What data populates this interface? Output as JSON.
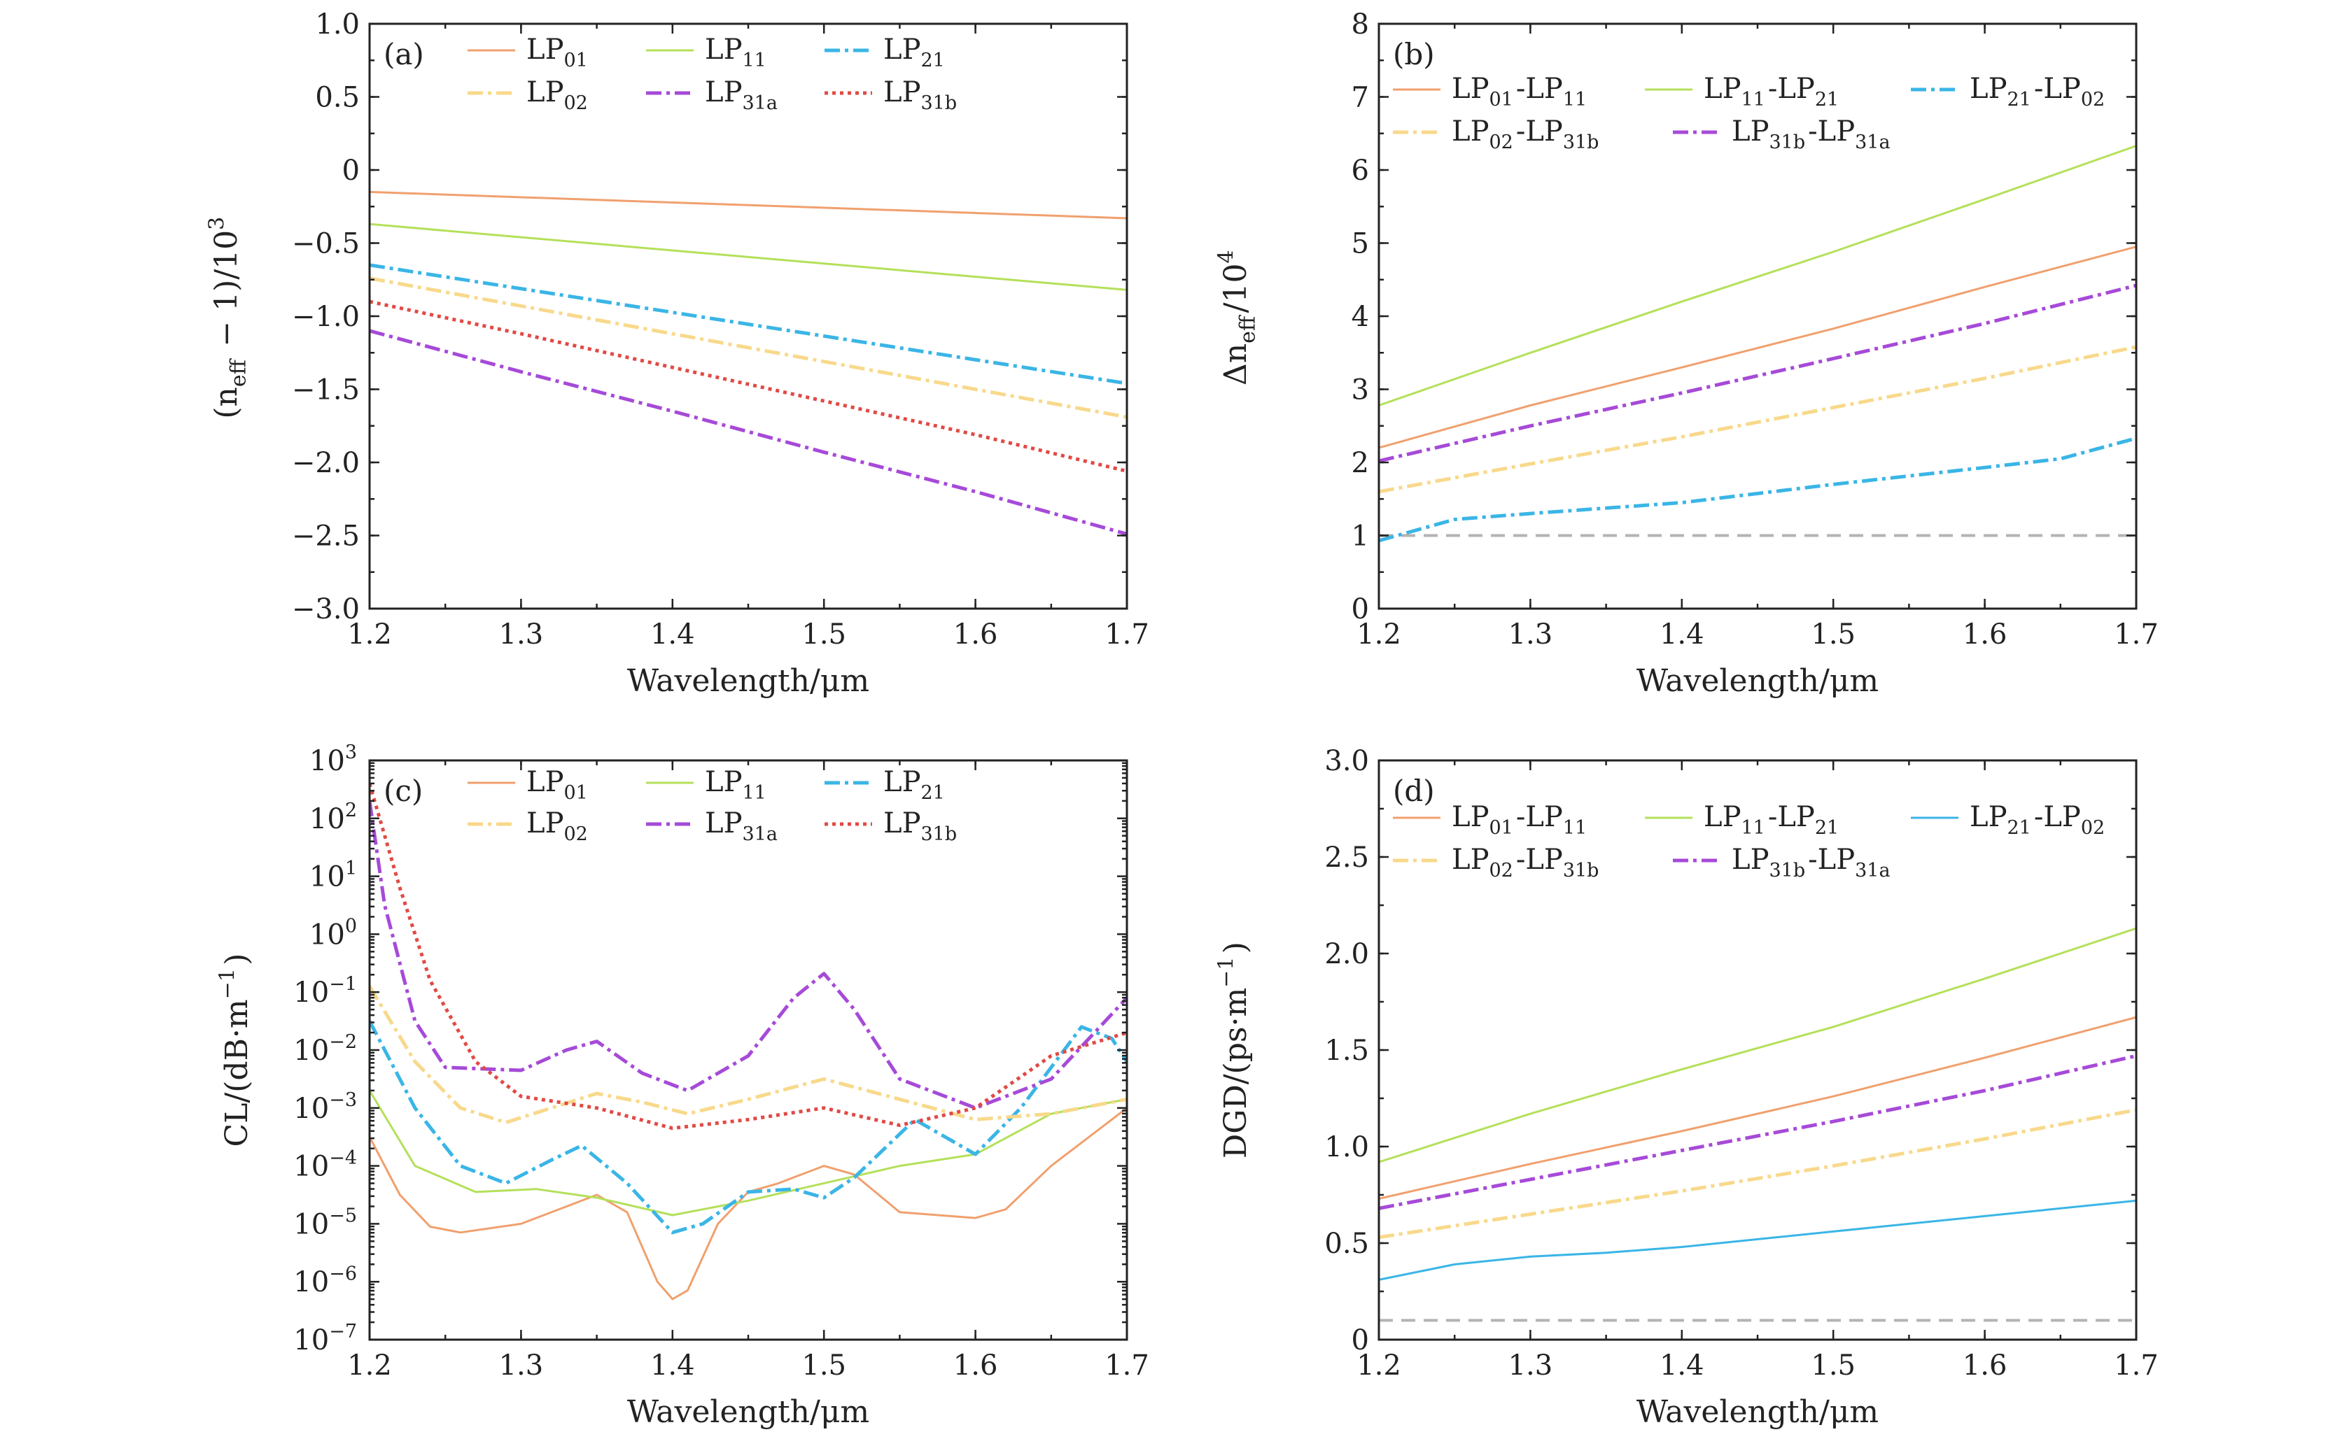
{
  "chart_data": [
    {
      "panel": "(a)",
      "type": "line",
      "scale": "linear",
      "xlabel": "Wavelength/μm",
      "ylabel": "(n_eff − 1)/10^3",
      "xlim": [
        1.2,
        1.7
      ],
      "ylim": [
        -3.0,
        1.0
      ],
      "xticks": [
        1.2,
        1.3,
        1.4,
        1.5,
        1.6,
        1.7
      ],
      "xtick_labels": [
        "1.2",
        "1.3",
        "1.4",
        "1.5",
        "1.6",
        "1.7"
      ],
      "yticks": [
        -3.0,
        -2.5,
        -2.0,
        -1.5,
        -1.0,
        -0.5,
        0,
        0.5,
        1.0
      ],
      "ytick_labels": [
        "−3.0",
        "−2.5",
        "−2.0",
        "−1.5",
        "−1.0",
        "−0.5",
        "0",
        "0.5",
        "1.0"
      ],
      "legend_cols": 3,
      "legend_placement": "top",
      "series": [
        {
          "name": "LP01",
          "color": "#f0a06e",
          "dash": "solid",
          "width": 3,
          "x": [
            1.2,
            1.7
          ],
          "values": [
            -0.15,
            -0.33
          ]
        },
        {
          "name": "LP11",
          "color": "#b4e05a",
          "dash": "solid",
          "width": 3,
          "x": [
            1.2,
            1.7
          ],
          "values": [
            -0.37,
            -0.82
          ]
        },
        {
          "name": "LP21",
          "color": "#3ab5e6",
          "dash": "dashdot",
          "width": 5,
          "x": [
            1.2,
            1.7
          ],
          "values": [
            -0.65,
            -1.46
          ]
        },
        {
          "name": "LP02",
          "color": "#f8d98b",
          "dash": "dashdot",
          "width": 5,
          "x": [
            1.2,
            1.7
          ],
          "values": [
            -0.74,
            -1.69
          ]
        },
        {
          "name": "LP31a",
          "color": "#a64ad8",
          "dash": "dashdot",
          "width": 5,
          "x": [
            1.2,
            1.3,
            1.4,
            1.5,
            1.6,
            1.7
          ],
          "values": [
            -1.1,
            -1.38,
            -1.65,
            -1.93,
            -2.2,
            -2.49
          ]
        },
        {
          "name": "LP31b",
          "color": "#e04a45",
          "dash": "dotted",
          "width": 5,
          "x": [
            1.2,
            1.3,
            1.4,
            1.5,
            1.6,
            1.7
          ],
          "values": [
            -0.9,
            -1.12,
            -1.35,
            -1.58,
            -1.81,
            -2.06
          ]
        }
      ]
    },
    {
      "panel": "(b)",
      "type": "line",
      "scale": "linear",
      "xlabel": "Wavelength/μm",
      "ylabel": "Δn_eff/10^4",
      "xlim": [
        1.2,
        1.7
      ],
      "ylim": [
        0,
        8
      ],
      "xticks": [
        1.2,
        1.3,
        1.4,
        1.5,
        1.6,
        1.7
      ],
      "xtick_labels": [
        "1.2",
        "1.3",
        "1.4",
        "1.5",
        "1.6",
        "1.7"
      ],
      "yticks": [
        0,
        1,
        2,
        3,
        4,
        5,
        6,
        7,
        8
      ],
      "ytick_labels": [
        "0",
        "1",
        "2",
        "3",
        "4",
        "5",
        "6",
        "7",
        "8"
      ],
      "legend_cols": 3,
      "legend_placement": "top",
      "reference_line": {
        "y": 1.0,
        "color": "#b4b4b4"
      },
      "series": [
        {
          "name": "LP01-LP11",
          "color": "#f0a06e",
          "dash": "solid",
          "width": 3,
          "x": [
            1.2,
            1.3,
            1.4,
            1.5,
            1.6,
            1.7
          ],
          "values": [
            2.2,
            2.78,
            3.3,
            3.83,
            4.4,
            4.95
          ]
        },
        {
          "name": "LP11-LP21",
          "color": "#b4e05a",
          "dash": "solid",
          "width": 3,
          "x": [
            1.2,
            1.3,
            1.4,
            1.5,
            1.6,
            1.7
          ],
          "values": [
            2.78,
            3.5,
            4.2,
            4.88,
            5.6,
            6.33
          ]
        },
        {
          "name": "LP21-LP02",
          "color": "#3ab5e6",
          "dash": "dashdot",
          "width": 5,
          "x": [
            1.2,
            1.25,
            1.3,
            1.4,
            1.5,
            1.6,
            1.65,
            1.7
          ],
          "values": [
            0.93,
            1.22,
            1.3,
            1.45,
            1.7,
            1.93,
            2.05,
            2.33
          ]
        },
        {
          "name": "LP02-LP31b",
          "color": "#f8d98b",
          "dash": "dashdot",
          "width": 5,
          "x": [
            1.2,
            1.3,
            1.4,
            1.5,
            1.6,
            1.7
          ],
          "values": [
            1.6,
            1.98,
            2.35,
            2.75,
            3.15,
            3.58
          ]
        },
        {
          "name": "LP31b-LP31a",
          "color": "#a64ad8",
          "dash": "dashdot",
          "width": 5,
          "x": [
            1.2,
            1.3,
            1.4,
            1.5,
            1.6,
            1.7
          ],
          "values": [
            2.02,
            2.5,
            2.95,
            3.42,
            3.9,
            4.42
          ]
        }
      ]
    },
    {
      "panel": "(c)",
      "type": "line",
      "scale": "log",
      "xlabel": "Wavelength/μm",
      "ylabel": "CL/(dB·m^−1)",
      "xlim": [
        1.2,
        1.7
      ],
      "ylim_log10": [
        -7,
        3
      ],
      "xticks": [
        1.2,
        1.3,
        1.4,
        1.5,
        1.6,
        1.7
      ],
      "xtick_labels": [
        "1.2",
        "1.3",
        "1.4",
        "1.5",
        "1.6",
        "1.7"
      ],
      "yticks_log10": [
        -7,
        -6,
        -5,
        -4,
        -3,
        -2,
        -1,
        0,
        1,
        2,
        3
      ],
      "ytick_labels": [
        "10^-7",
        "10^-6",
        "10^-5",
        "10^-4",
        "10^-3",
        "10^-2",
        "10^-1",
        "10^0",
        "10^1",
        "10^2",
        "10^3"
      ],
      "legend_cols": 3,
      "legend_placement": "top",
      "series": [
        {
          "name": "LP01",
          "color": "#f0a06e",
          "dash": "solid",
          "width": 3,
          "x": [
            1.2,
            1.22,
            1.24,
            1.26,
            1.3,
            1.33,
            1.35,
            1.37,
            1.39,
            1.4,
            1.41,
            1.43,
            1.45,
            1.47,
            1.5,
            1.52,
            1.55,
            1.6,
            1.62,
            1.65,
            1.7
          ],
          "log10": [
            -3.5,
            -4.5,
            -5.05,
            -5.15,
            -5.0,
            -4.7,
            -4.5,
            -4.8,
            -6.0,
            -6.3,
            -6.15,
            -5.0,
            -4.45,
            -4.3,
            -4.0,
            -4.15,
            -4.8,
            -4.9,
            -4.75,
            -4.0,
            -3.0
          ]
        },
        {
          "name": "LP11",
          "color": "#b4e05a",
          "dash": "solid",
          "width": 3,
          "x": [
            1.2,
            1.23,
            1.27,
            1.31,
            1.35,
            1.4,
            1.45,
            1.5,
            1.55,
            1.6,
            1.65,
            1.7
          ],
          "log10": [
            -2.7,
            -4.0,
            -4.45,
            -4.4,
            -4.55,
            -4.85,
            -4.6,
            -4.3,
            -4.0,
            -3.8,
            -3.1,
            -2.85
          ]
        },
        {
          "name": "LP21",
          "color": "#3ab5e6",
          "dash": "dashdot",
          "width": 5,
          "x": [
            1.2,
            1.23,
            1.26,
            1.29,
            1.32,
            1.34,
            1.37,
            1.4,
            1.42,
            1.45,
            1.48,
            1.5,
            1.52,
            1.56,
            1.6,
            1.63,
            1.67,
            1.69,
            1.7
          ],
          "log10": [
            -1.5,
            -3.0,
            -4.0,
            -4.3,
            -3.9,
            -3.65,
            -4.3,
            -5.15,
            -5.0,
            -4.45,
            -4.4,
            -4.55,
            -4.2,
            -3.2,
            -3.8,
            -3.0,
            -1.6,
            -1.8,
            -2.2
          ]
        },
        {
          "name": "LP02",
          "color": "#f8d98b",
          "dash": "dashdot",
          "width": 5,
          "x": [
            1.2,
            1.23,
            1.26,
            1.29,
            1.32,
            1.35,
            1.38,
            1.41,
            1.45,
            1.5,
            1.55,
            1.6,
            1.65,
            1.7
          ],
          "log10": [
            -0.9,
            -2.2,
            -3.0,
            -3.25,
            -3.0,
            -2.75,
            -2.9,
            -3.1,
            -2.85,
            -2.5,
            -2.85,
            -3.2,
            -3.1,
            -2.85
          ]
        },
        {
          "name": "LP31a",
          "color": "#a64ad8",
          "dash": "dashdot",
          "width": 5,
          "x": [
            1.2,
            1.21,
            1.23,
            1.25,
            1.3,
            1.33,
            1.35,
            1.38,
            1.41,
            1.45,
            1.48,
            1.5,
            1.52,
            1.55,
            1.6,
            1.65,
            1.7
          ],
          "log10": [
            2.3,
            0.5,
            -1.5,
            -2.3,
            -2.35,
            -2.0,
            -1.85,
            -2.4,
            -2.7,
            -2.1,
            -1.1,
            -0.68,
            -1.3,
            -2.5,
            -3.0,
            -2.5,
            -1.1
          ]
        },
        {
          "name": "LP31b",
          "color": "#e04a45",
          "dash": "dotted",
          "width": 5,
          "x": [
            1.2,
            1.22,
            1.24,
            1.27,
            1.3,
            1.35,
            1.4,
            1.45,
            1.5,
            1.55,
            1.6,
            1.65,
            1.7
          ],
          "log10": [
            2.6,
            0.8,
            -0.8,
            -2.2,
            -2.8,
            -3.0,
            -3.35,
            -3.2,
            -3.0,
            -3.3,
            -3.0,
            -2.1,
            -1.7
          ]
        }
      ]
    },
    {
      "panel": "(d)",
      "type": "line",
      "scale": "linear",
      "xlabel": "Wavelength/μm",
      "ylabel": "DGD/(ps·m^−1)",
      "xlim": [
        1.2,
        1.7
      ],
      "ylim": [
        0,
        3.0
      ],
      "xticks": [
        1.2,
        1.3,
        1.4,
        1.5,
        1.6,
        1.7
      ],
      "xtick_labels": [
        "1.2",
        "1.3",
        "1.4",
        "1.5",
        "1.6",
        "1.7"
      ],
      "yticks": [
        0,
        0.5,
        1.0,
        1.5,
        2.0,
        2.5,
        3.0
      ],
      "ytick_labels": [
        "0",
        "0.5",
        "1.0",
        "1.5",
        "2.0",
        "2.5",
        "3.0"
      ],
      "legend_cols": 3,
      "legend_placement": "top",
      "reference_line": {
        "y": 0.1,
        "color": "#b4b4b4"
      },
      "series": [
        {
          "name": "LP01-LP11",
          "color": "#f0a06e",
          "dash": "solid",
          "width": 3,
          "x": [
            1.2,
            1.3,
            1.4,
            1.5,
            1.6,
            1.7
          ],
          "values": [
            0.73,
            0.91,
            1.08,
            1.26,
            1.46,
            1.67
          ]
        },
        {
          "name": "LP11-LP21",
          "color": "#b4e05a",
          "dash": "solid",
          "width": 3,
          "x": [
            1.2,
            1.3,
            1.4,
            1.5,
            1.6,
            1.7
          ],
          "values": [
            0.92,
            1.17,
            1.4,
            1.62,
            1.87,
            2.13
          ]
        },
        {
          "name": "LP21-LP02",
          "color": "#3ab5e6",
          "dash": "solid",
          "width": 3,
          "x": [
            1.2,
            1.25,
            1.3,
            1.35,
            1.4,
            1.5,
            1.6,
            1.7
          ],
          "values": [
            0.31,
            0.39,
            0.43,
            0.45,
            0.48,
            0.56,
            0.64,
            0.72
          ]
        },
        {
          "name": "LP02-LP31b",
          "color": "#f8d98b",
          "dash": "dashdot",
          "width": 5,
          "x": [
            1.2,
            1.3,
            1.4,
            1.5,
            1.6,
            1.7
          ],
          "values": [
            0.53,
            0.65,
            0.77,
            0.9,
            1.04,
            1.19
          ]
        },
        {
          "name": "LP31b-LP31a",
          "color": "#a64ad8",
          "dash": "dashdot",
          "width": 5,
          "x": [
            1.2,
            1.3,
            1.4,
            1.5,
            1.6,
            1.7
          ],
          "values": [
            0.68,
            0.83,
            0.98,
            1.13,
            1.29,
            1.47
          ]
        }
      ]
    }
  ]
}
